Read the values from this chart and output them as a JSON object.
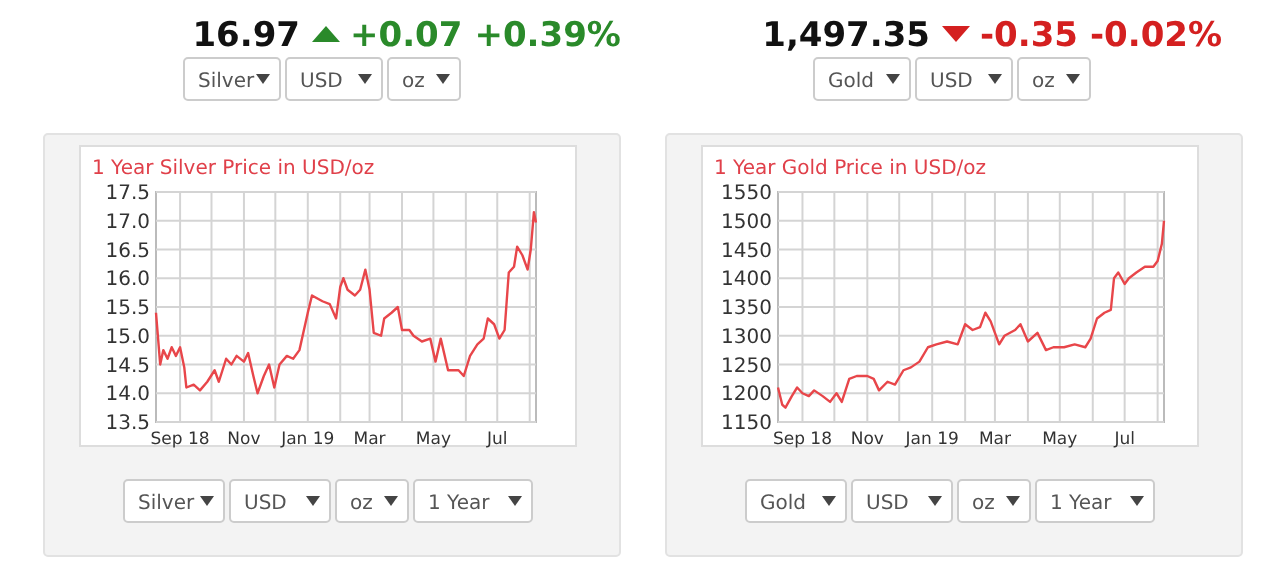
{
  "chart_data": [
    {
      "type": "line",
      "title": "1 Year Silver Price in USD/oz",
      "annotations": [
        "16.97",
        "+0.07",
        "+0.39%",
        "Silver",
        "USD",
        "oz",
        "Silver",
        "USD",
        "oz",
        "1 Year"
      ],
      "grid": true,
      "xlim": [
        "2018-08-09",
        "2019-08-07"
      ],
      "ylim": [
        13.5,
        17.5
      ],
      "xticks": [
        {
          "value": "2018-09-01",
          "label": "Sep 18"
        },
        {
          "value": "2018-10-01",
          "label": null
        },
        {
          "value": "2018-11-01",
          "label": "Nov"
        },
        {
          "value": "2018-12-01",
          "label": null
        },
        {
          "value": "2019-01-01",
          "label": "Jan 19"
        },
        {
          "value": "2019-02-01",
          "label": null
        },
        {
          "value": "2019-03-01",
          "label": "Mar"
        },
        {
          "value": "2019-04-01",
          "label": null
        },
        {
          "value": "2019-05-01",
          "label": "May"
        },
        {
          "value": "2019-06-01",
          "label": null
        },
        {
          "value": "2019-07-01",
          "label": "Jul"
        },
        {
          "value": "2019-08-01",
          "label": null
        }
      ],
      "yticks": [
        13.5,
        {
          "value": 14,
          "label": "14.0"
        },
        14.5,
        {
          "value": 15,
          "label": "15.0"
        },
        15.5,
        {
          "value": 16,
          "label": "16.0"
        },
        16.5,
        {
          "value": 17,
          "label": "17.0"
        },
        17.5
      ],
      "x": [
        "2018-08-09",
        "2018-08-13",
        "2018-08-16",
        "2018-08-20",
        "2018-08-24",
        "2018-08-28",
        "2018-09-01",
        "2018-09-05",
        "2018-09-07",
        "2018-09-14",
        "2018-09-20",
        "2018-09-27",
        "2018-10-04",
        "2018-10-08",
        "2018-10-15",
        "2018-10-20",
        "2018-10-25",
        "2018-11-01",
        "2018-11-05",
        "2018-11-10",
        "2018-11-14",
        "2018-11-20",
        "2018-11-25",
        "2018-11-30",
        "2018-12-05",
        "2018-12-12",
        "2018-12-18",
        "2018-12-24",
        "2019-01-01",
        "2019-01-05",
        "2019-01-15",
        "2019-01-22",
        "2019-01-28",
        "2019-02-01",
        "2019-02-04",
        "2019-02-08",
        "2019-02-15",
        "2019-02-20",
        "2019-02-25",
        "2019-03-01",
        "2019-03-05",
        "2019-03-12",
        "2019-03-15",
        "2019-03-22",
        "2019-03-28",
        "2019-04-01",
        "2019-04-08",
        "2019-04-12",
        "2019-04-20",
        "2019-04-28",
        "2019-05-03",
        "2019-05-08",
        "2019-05-15",
        "2019-05-25",
        "2019-05-30",
        "2019-06-05",
        "2019-06-12",
        "2019-06-18",
        "2019-06-22",
        "2019-06-28",
        "2019-07-03",
        "2019-07-08",
        "2019-07-12",
        "2019-07-17",
        "2019-07-20",
        "2019-07-25",
        "2019-07-30",
        "2019-08-02",
        "2019-08-05",
        "2019-08-07"
      ],
      "series": [
        {
          "color": "#e8464a",
          "values": [
            15.4,
            14.5,
            14.75,
            14.6,
            14.8,
            14.65,
            14.8,
            14.45,
            14.1,
            14.15,
            14.05,
            14.2,
            14.4,
            14.2,
            14.6,
            14.5,
            14.65,
            14.55,
            14.7,
            14.3,
            14.0,
            14.3,
            14.5,
            14.1,
            14.5,
            14.65,
            14.6,
            14.75,
            15.4,
            15.7,
            15.6,
            15.55,
            15.3,
            15.85,
            16.0,
            15.8,
            15.7,
            15.8,
            16.15,
            15.8,
            15.05,
            15.0,
            15.3,
            15.4,
            15.5,
            15.1,
            15.1,
            15.0,
            14.9,
            14.95,
            14.55,
            14.95,
            14.4,
            14.4,
            14.3,
            14.65,
            14.85,
            14.95,
            15.3,
            15.2,
            14.95,
            15.1,
            16.1,
            16.2,
            16.55,
            16.4,
            16.15,
            16.5,
            17.15,
            16.97
          ]
        }
      ]
    },
    {
      "type": "line",
      "title": "1 Year Gold Price in USD/oz",
      "annotations": [
        "1,497.35",
        "-0.35",
        "-0.02%",
        "Gold",
        "USD",
        "oz",
        "Gold",
        "USD",
        "oz",
        "1 Year"
      ],
      "grid": true,
      "xlim": [
        "2018-08-09",
        "2019-08-07"
      ],
      "ylim": [
        1150,
        1550
      ],
      "xticks": [
        {
          "value": "2018-09-01",
          "label": "Sep 18"
        },
        {
          "value": "2018-10-01",
          "label": null
        },
        {
          "value": "2018-11-01",
          "label": "Nov"
        },
        {
          "value": "2018-12-01",
          "label": null
        },
        {
          "value": "2019-01-01",
          "label": "Jan 19"
        },
        {
          "value": "2019-02-01",
          "label": null
        },
        {
          "value": "2019-03-01",
          "label": "Mar"
        },
        {
          "value": "2019-04-01",
          "label": null
        },
        {
          "value": "2019-05-01",
          "label": "May"
        },
        {
          "value": "2019-06-01",
          "label": null
        },
        {
          "value": "2019-07-01",
          "label": "Jul"
        },
        {
          "value": "2019-08-01",
          "label": null
        }
      ],
      "yticks": [
        1150,
        1200,
        1250,
        1300,
        1350,
        1400,
        1450,
        1500,
        1550
      ],
      "x": [
        "2018-08-09",
        "2018-08-13",
        "2018-08-16",
        "2018-08-22",
        "2018-08-27",
        "2018-09-01",
        "2018-09-07",
        "2018-09-12",
        "2018-09-20",
        "2018-09-27",
        "2018-10-03",
        "2018-10-08",
        "2018-10-15",
        "2018-10-22",
        "2018-11-01",
        "2018-11-07",
        "2018-11-12",
        "2018-11-20",
        "2018-11-27",
        "2018-12-05",
        "2018-12-12",
        "2018-12-20",
        "2018-12-28",
        "2019-01-05",
        "2019-01-15",
        "2019-01-25",
        "2019-02-01",
        "2019-02-08",
        "2019-02-15",
        "2019-02-20",
        "2019-02-25",
        "2019-03-05",
        "2019-03-10",
        "2019-03-20",
        "2019-03-25",
        "2019-04-01",
        "2019-04-10",
        "2019-04-18",
        "2019-04-25",
        "2019-05-05",
        "2019-05-15",
        "2019-05-25",
        "2019-05-30",
        "2019-06-05",
        "2019-06-12",
        "2019-06-18",
        "2019-06-21",
        "2019-06-25",
        "2019-07-01",
        "2019-07-05",
        "2019-07-12",
        "2019-07-20",
        "2019-07-28",
        "2019-08-01",
        "2019-08-05",
        "2019-08-07"
      ],
      "series": [
        {
          "color": "#e8464a",
          "values": [
            1210,
            1180,
            1175,
            1195,
            1210,
            1200,
            1195,
            1205,
            1195,
            1185,
            1200,
            1185,
            1225,
            1230,
            1230,
            1225,
            1205,
            1220,
            1215,
            1240,
            1245,
            1255,
            1280,
            1285,
            1290,
            1285,
            1320,
            1310,
            1315,
            1340,
            1325,
            1285,
            1300,
            1310,
            1320,
            1290,
            1305,
            1275,
            1280,
            1280,
            1285,
            1280,
            1295,
            1330,
            1340,
            1345,
            1400,
            1410,
            1390,
            1400,
            1410,
            1420,
            1420,
            1430,
            1460,
            1500
          ]
        }
      ]
    }
  ]
}
